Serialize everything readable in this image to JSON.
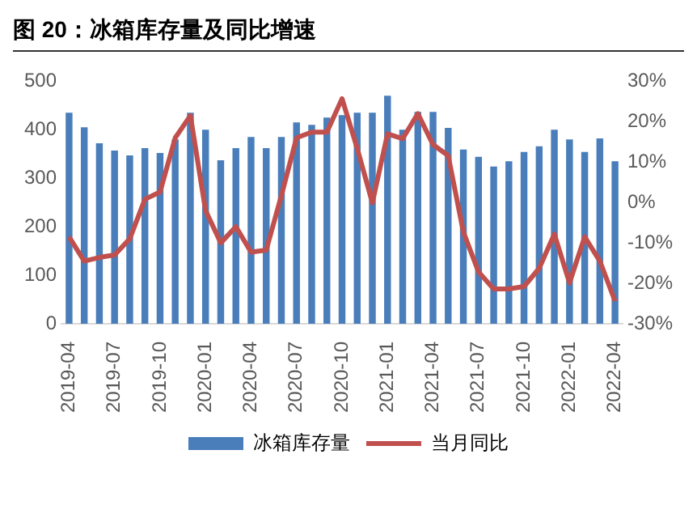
{
  "chart_data": {
    "type": "bar",
    "title": "图 20：冰箱库存量及同比增速",
    "categories": [
      "2019-04",
      null,
      null,
      "2019-07",
      null,
      null,
      "2019-10",
      null,
      null,
      "2020-01",
      null,
      null,
      "2020-04",
      null,
      null,
      "2020-07",
      null,
      null,
      "2020-10",
      null,
      null,
      "2021-01",
      null,
      null,
      "2021-04",
      null,
      null,
      "2021-07",
      null,
      null,
      "2021-10",
      null,
      null,
      "2022-01",
      null,
      null,
      "2022-04"
    ],
    "series": [
      {
        "name": "冰箱库存量",
        "color": "#4a7ebb",
        "values": [
          435,
          405,
          372,
          357,
          347,
          362,
          352,
          380,
          435,
          400,
          337,
          362,
          385,
          362,
          385,
          415,
          410,
          425,
          430,
          435,
          435,
          470,
          400,
          437,
          437,
          404,
          359,
          344,
          324,
          335,
          354,
          366,
          400,
          380,
          354,
          382,
          335
        ]
      },
      {
        "name": "当月同比",
        "type": "line",
        "axis": "y2",
        "color": "#c0504d",
        "values": [
          -8.5,
          -14.5,
          -13.6,
          -13,
          -9,
          0.8,
          2.6,
          16,
          21.5,
          -2,
          -10,
          -6,
          -12.3,
          -11.8,
          1.7,
          16,
          17.4,
          17.4,
          25.7,
          13.4,
          -0.1,
          17,
          15.8,
          22,
          14.3,
          11.6,
          -7.3,
          -17.2,
          -21.4,
          -21.4,
          -20.8,
          -16.3,
          -7.8,
          -19.9,
          -8.5,
          -14.5,
          -24.4
        ]
      }
    ],
    "ylim": [
      0,
      500
    ],
    "yticks": [
      0,
      100,
      200,
      300,
      400,
      500
    ],
    "y2lim": [
      -30,
      30
    ],
    "y2ticks": [
      {
        "value": -30,
        "label": "-30%"
      },
      {
        "value": -20,
        "label": "-20%"
      },
      {
        "value": -10,
        "label": "-10%"
      },
      {
        "value": 0,
        "label": "0%"
      },
      {
        "value": 10,
        "label": "10%"
      },
      {
        "value": 20,
        "label": "20%"
      },
      {
        "value": 30,
        "label": "30%"
      }
    ],
    "grid": false,
    "legend": "bottom",
    "marker": "none",
    "line_style": "solid"
  }
}
